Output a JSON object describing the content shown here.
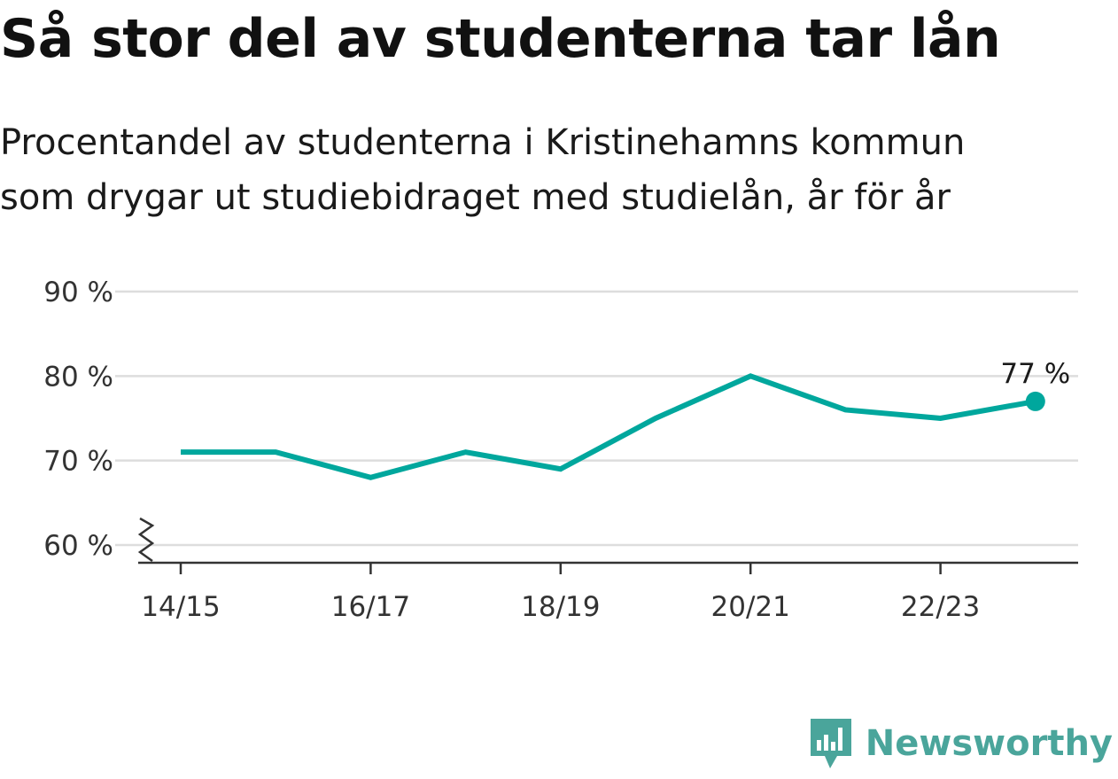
{
  "title": "Så stor del av studenterna tar lån",
  "subtitle_lines": [
    "Procentandel av studenterna i Kristinehamns kommun",
    "som drygar ut studiebidraget med studielån, år för år"
  ],
  "brand": {
    "name": "Newsworthy",
    "color": "#4aa59b",
    "icon": "bar-chart-speech-bubble-icon"
  },
  "colors": {
    "line": "#00a79d",
    "grid": "#dddddd",
    "axis": "#333333"
  },
  "chart_data": {
    "type": "line",
    "x": [
      "14/15",
      "15/16",
      "16/17",
      "17/18",
      "18/19",
      "19/20",
      "20/21",
      "21/22",
      "22/23",
      "23/24"
    ],
    "series": [
      {
        "values": [
          71,
          71,
          68,
          71,
          69,
          75,
          80,
          76,
          75,
          77
        ]
      }
    ],
    "x_tick_labels": [
      "14/15",
      "16/17",
      "18/19",
      "20/21",
      "22/23"
    ],
    "y_ticks": [
      60,
      70,
      80,
      90
    ],
    "y_tick_labels": [
      "60 %",
      "70 %",
      "80 %",
      "90 %"
    ],
    "ylim": [
      60,
      90
    ],
    "y_axis_break": true,
    "grid": true,
    "last_point_label": "77 %"
  }
}
